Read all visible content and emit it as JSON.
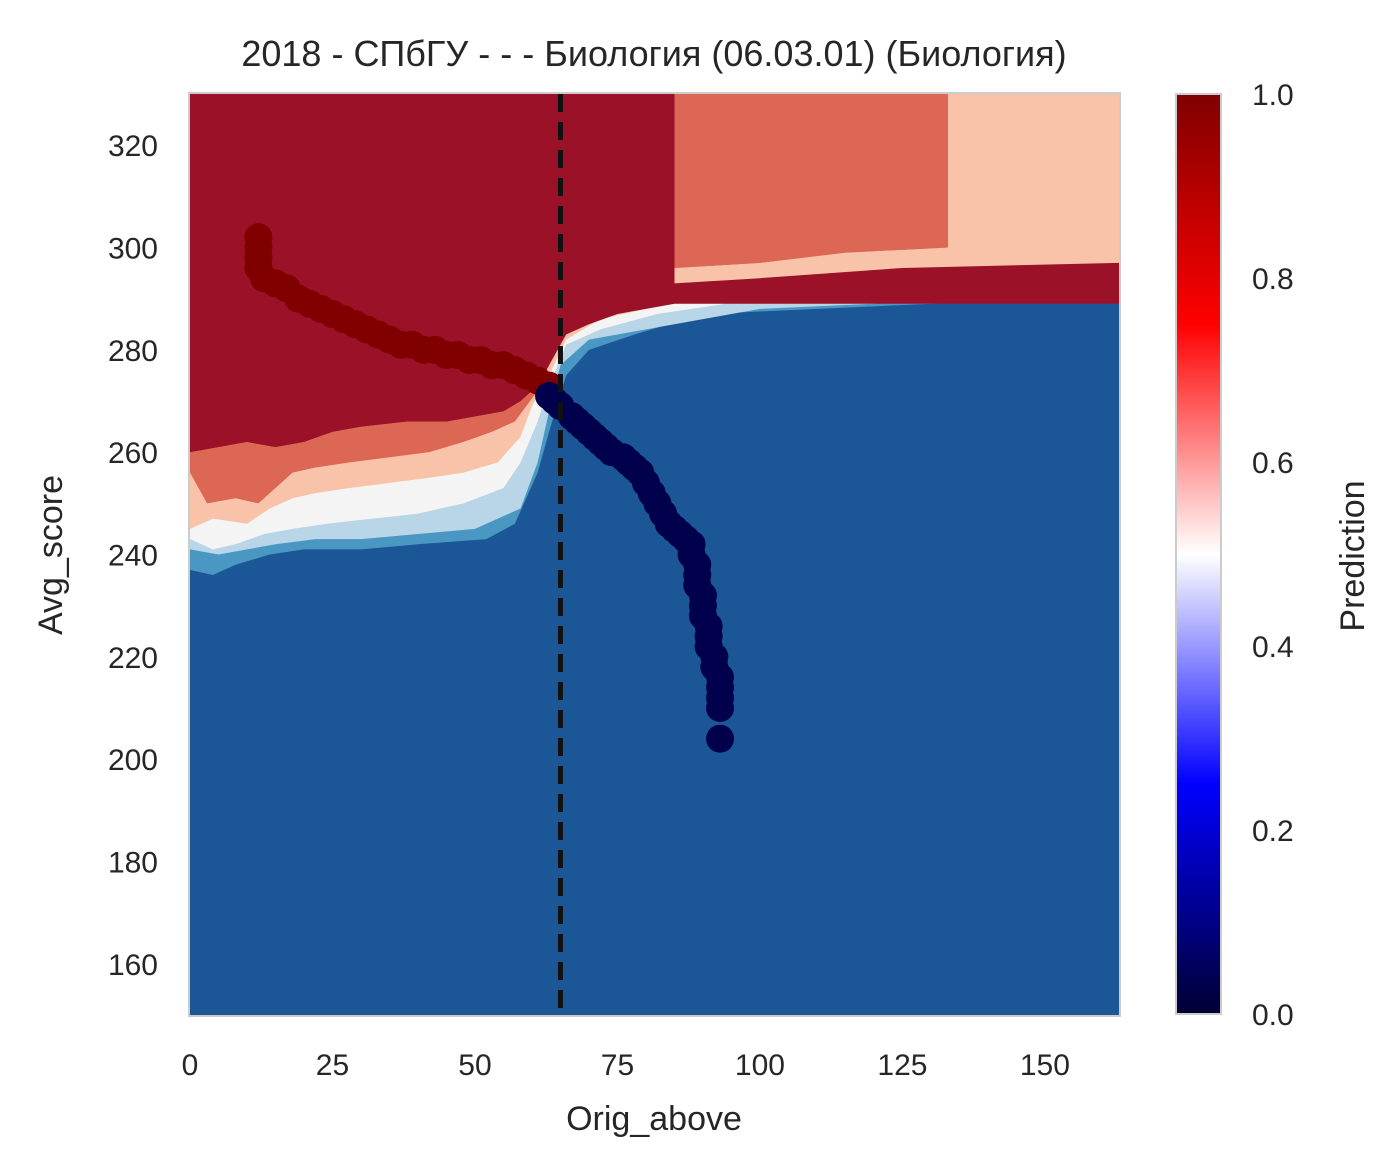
{
  "chart_data": {
    "type": "scatter",
    "title": "2018 - СПбГУ - - - Биология (06.03.01) (Биология)",
    "xlabel": "Orig_above",
    "ylabel": "Avg_score",
    "xlim": [
      0,
      163
    ],
    "ylim": [
      150,
      330
    ],
    "x_ticks": [
      0,
      25,
      50,
      75,
      100,
      125,
      150
    ],
    "y_ticks": [
      160,
      180,
      200,
      220,
      240,
      260,
      280,
      300,
      320
    ],
    "grid": false,
    "threshold_line": {
      "x": 65,
      "style": "dashed",
      "color": "#111111"
    },
    "background": {
      "kind": "decision_regions",
      "levels": [
        {
          "min": 0.8,
          "max": 1.0,
          "color": "#9b1228"
        },
        {
          "min": 0.7,
          "max": 0.8,
          "color": "#db6754"
        },
        {
          "min": 0.6,
          "max": 0.7,
          "color": "#f8c3a9"
        },
        {
          "min": 0.5,
          "max": 0.6,
          "color": "#f4f4f4"
        },
        {
          "min": 0.4,
          "max": 0.5,
          "color": "#b8d6e7"
        },
        {
          "min": 0.3,
          "max": 0.4,
          "color": "#4b97c4"
        },
        {
          "min": 0.0,
          "max": 0.3,
          "color": "#1b5796"
        }
      ]
    },
    "series": [
      {
        "prediction": 1,
        "color": "#800000",
        "points": [
          [
            12,
            302
          ],
          [
            12,
            300
          ],
          [
            12,
            298
          ],
          [
            12,
            296
          ],
          [
            13,
            294
          ],
          [
            15,
            293
          ],
          [
            17,
            292
          ],
          [
            19,
            290
          ],
          [
            21,
            289
          ],
          [
            23,
            288
          ],
          [
            25,
            287
          ],
          [
            27,
            286
          ],
          [
            29,
            285
          ],
          [
            31,
            284
          ],
          [
            33,
            283
          ],
          [
            35,
            282
          ],
          [
            37,
            281
          ],
          [
            39,
            281
          ],
          [
            41,
            280
          ],
          [
            43,
            280
          ],
          [
            45,
            279
          ],
          [
            47,
            279
          ],
          [
            49,
            278
          ],
          [
            51,
            278
          ],
          [
            53,
            277
          ],
          [
            55,
            277
          ],
          [
            57,
            276
          ],
          [
            59,
            275
          ],
          [
            61,
            274
          ],
          [
            63,
            273
          ]
        ]
      },
      {
        "prediction": 0,
        "color": "#00004c",
        "points": [
          [
            63,
            271
          ],
          [
            64,
            270
          ],
          [
            65,
            269
          ],
          [
            67,
            267
          ],
          [
            68,
            266
          ],
          [
            69,
            265
          ],
          [
            70,
            264
          ],
          [
            71,
            263
          ],
          [
            72,
            262
          ],
          [
            73,
            261
          ],
          [
            74,
            260
          ],
          [
            76,
            259
          ],
          [
            77,
            258
          ],
          [
            78,
            257
          ],
          [
            79,
            256
          ],
          [
            80,
            254
          ],
          [
            81,
            252
          ],
          [
            82,
            250
          ],
          [
            83,
            248
          ],
          [
            84,
            246
          ],
          [
            85,
            245
          ],
          [
            86,
            244
          ],
          [
            87,
            243
          ],
          [
            88,
            242
          ],
          [
            88,
            240
          ],
          [
            89,
            238
          ],
          [
            89,
            236
          ],
          [
            89,
            234
          ],
          [
            90,
            232
          ],
          [
            90,
            230
          ],
          [
            90,
            228
          ],
          [
            91,
            226
          ],
          [
            91,
            224
          ],
          [
            91,
            222
          ],
          [
            92,
            220
          ],
          [
            92,
            218
          ],
          [
            93,
            216
          ],
          [
            93,
            214
          ],
          [
            93,
            212
          ],
          [
            93,
            210
          ],
          [
            93,
            204
          ]
        ]
      }
    ],
    "colorbar": {
      "label": "Prediction",
      "range": [
        0,
        1
      ],
      "ticks": [
        "0.0",
        "0.2",
        "0.4",
        "0.6",
        "0.8",
        "1.0"
      ],
      "colormap": [
        "#000033",
        "#0000ff",
        "#ffffff",
        "#ff0000",
        "#800000"
      ]
    }
  }
}
